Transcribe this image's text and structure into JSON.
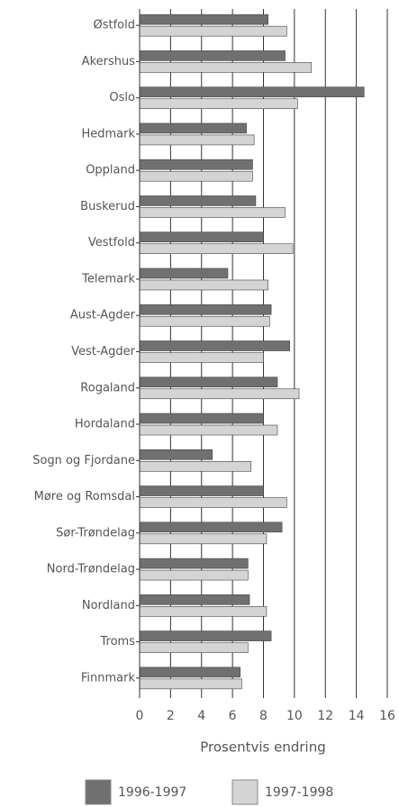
{
  "chart_data": {
    "type": "bar",
    "orientation": "horizontal",
    "x_label": "Prosentvis endring",
    "categories": [
      "Østfold",
      "Akershus",
      "Oslo",
      "Hedmark",
      "Oppland",
      "Buskerud",
      "Vestfold",
      "Telemark",
      "Aust-Agder",
      "Vest-Agder",
      "Rogaland",
      "Hordaland",
      "Sogn og Fjordane",
      "Møre og Romsdal",
      "Sør-Trøndelag",
      "Nord-Trøndelag",
      "Nordland",
      "Troms",
      "Finnmark"
    ],
    "series": [
      {
        "name": "1996-1997",
        "color": "#707070",
        "values": [
          8.3,
          9.4,
          14.5,
          6.9,
          7.3,
          7.5,
          8.0,
          5.7,
          8.5,
          9.7,
          8.9,
          8.0,
          4.7,
          8.0,
          9.2,
          7.0,
          7.1,
          8.5,
          6.5
        ]
      },
      {
        "name": "1997-1998",
        "color": "#d4d4d4",
        "values": [
          9.5,
          11.1,
          10.2,
          7.4,
          7.3,
          9.4,
          9.9,
          8.3,
          8.4,
          8.0,
          10.3,
          8.9,
          7.2,
          9.5,
          8.2,
          7.0,
          8.2,
          7.0,
          6.6
        ]
      }
    ],
    "xlim": [
      0,
      16
    ],
    "xticks": [
      0,
      2,
      4,
      6,
      8,
      10,
      12,
      14,
      16
    ],
    "grid": true,
    "legend": "bottom"
  }
}
